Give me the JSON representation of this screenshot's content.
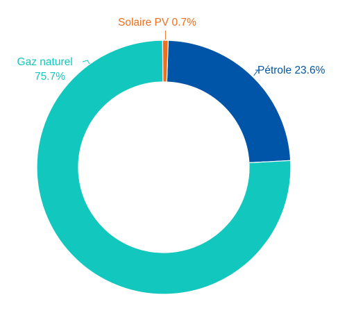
{
  "chart_data": {
    "type": "pie",
    "donut": true,
    "categories": [
      "Pétrole",
      "Gaz naturel",
      "Solaire PV"
    ],
    "values": [
      23.6,
      75.7,
      0.7
    ],
    "labels": [
      {
        "name": "Pétrole",
        "value": "23.6%"
      },
      {
        "name": "Gaz naturel",
        "value": "75.7%"
      },
      {
        "name": "Solaire PV",
        "value": "0.7%"
      }
    ],
    "colors": [
      "#0055A8",
      "#12C7BD",
      "#EE6F1E"
    ],
    "legend": "none"
  }
}
